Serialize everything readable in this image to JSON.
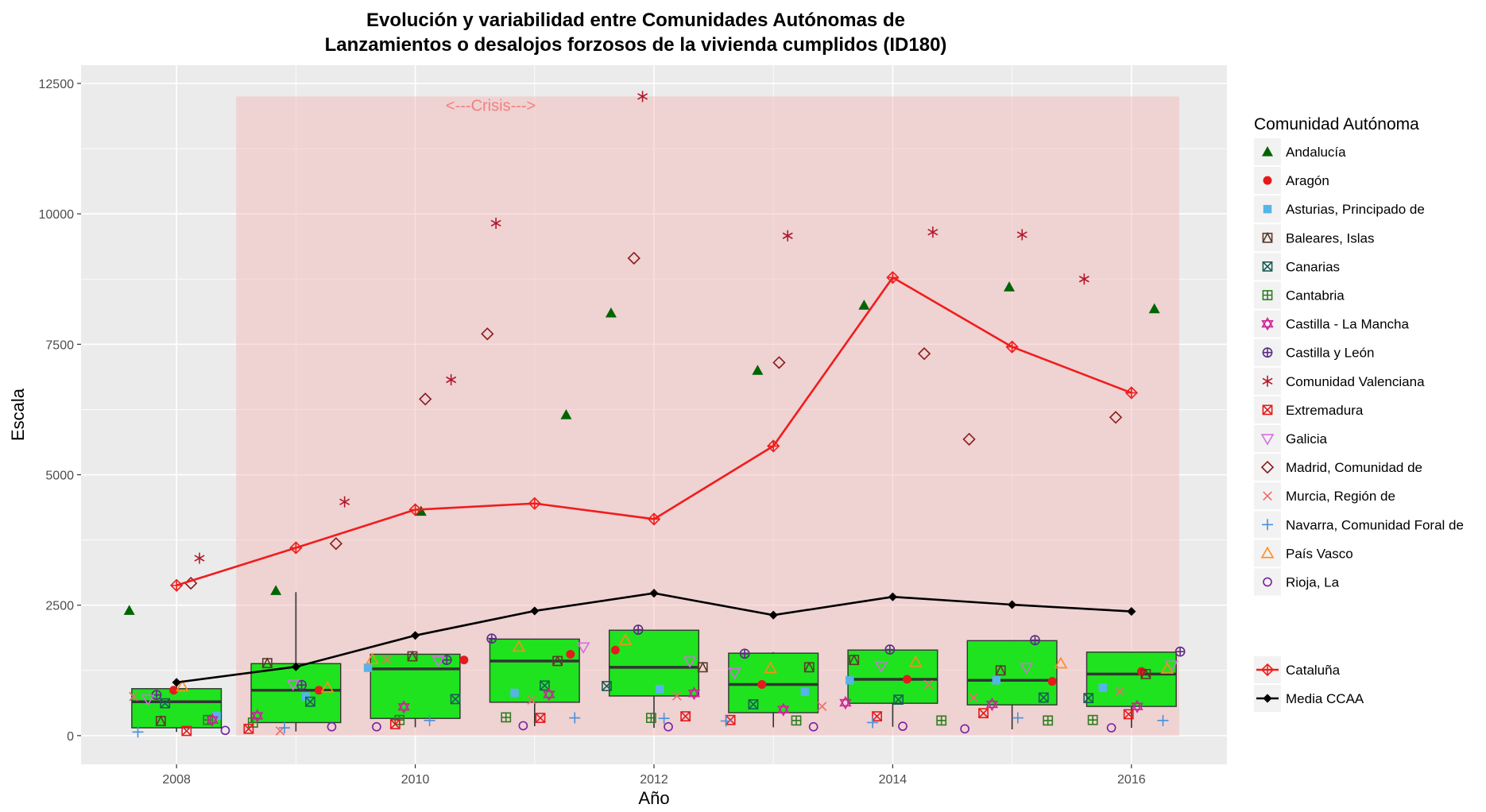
{
  "chart_data": {
    "type": "boxplot",
    "title_line1": "Evolución y variabilidad entre Comunidades Autónomas de",
    "title_line2": "Lanzamientos o desalojos forzosos de la vivienda cumplidos (ID180)",
    "xlabel": "Año",
    "ylabel": "Escala",
    "xlim": [
      2007.2,
      2016.8
    ],
    "ylim": [
      -550,
      12850
    ],
    "x_ticks": [
      2008,
      2010,
      2012,
      2014,
      2016
    ],
    "y_ticks": [
      0,
      2500,
      5000,
      7500,
      10000,
      12500
    ],
    "x_tick_labels": [
      "2008",
      "2010",
      "2012",
      "2014",
      "2016"
    ],
    "y_tick_labels": [
      "0",
      "2500",
      "5000",
      "7500",
      "10000",
      "12500"
    ],
    "grid": true,
    "legend_position": "right",
    "crisis_band": {
      "label": "<---Crisis--->",
      "x_start": 2008.5,
      "x_end": 2016.4,
      "y_top": 12250,
      "color": "#f4b4b4"
    },
    "boxes": [
      {
        "x": 2008,
        "q1": 150,
        "median": 650,
        "q3": 900,
        "lower": 70,
        "upper": 940
      },
      {
        "x": 2009,
        "q1": 250,
        "median": 870,
        "q3": 1380,
        "lower": 80,
        "upper": 2750
      },
      {
        "x": 2010,
        "q1": 330,
        "median": 1280,
        "q3": 1560,
        "lower": 160,
        "upper": 1580
      },
      {
        "x": 2011,
        "q1": 640,
        "median": 1430,
        "q3": 1850,
        "lower": 180,
        "upper": 1860
      },
      {
        "x": 2012,
        "q1": 760,
        "median": 1310,
        "q3": 2020,
        "lower": 150,
        "upper": 2030
      },
      {
        "x": 2013,
        "q1": 440,
        "median": 980,
        "q3": 1580,
        "lower": 160,
        "upper": 1600
      },
      {
        "x": 2014,
        "q1": 620,
        "median": 1080,
        "q3": 1640,
        "lower": 170,
        "upper": 1650
      },
      {
        "x": 2015,
        "q1": 590,
        "median": 1060,
        "q3": 1820,
        "lower": 120,
        "upper": 1830
      },
      {
        "x": 2016,
        "q1": 560,
        "median": 1180,
        "q3": 1600,
        "lower": 150,
        "upper": 1610
      }
    ],
    "box_color": "#1fe31f",
    "years": [
      2008,
      2009,
      2010,
      2011,
      2012,
      2013,
      2014,
      2015,
      2016
    ],
    "legend_title": "Comunidad Autónoma",
    "series": [
      {
        "name": "Andalucía",
        "shape": "triangle-filled",
        "color": "#006400",
        "values": [
          2400,
          2780,
          4300,
          6150,
          8100,
          7000,
          8250,
          8600,
          8180
        ]
      },
      {
        "name": "Aragón",
        "shape": "circle-filled",
        "color": "#e41a1c",
        "values": [
          870,
          870,
          1450,
          1560,
          1640,
          980,
          1080,
          1040,
          1230
        ]
      },
      {
        "name": "Asturias, Principado de",
        "shape": "square-filled",
        "color": "#56b4e9",
        "values": [
          380,
          750,
          1300,
          820,
          890,
          840,
          1060,
          1060,
          920
        ]
      },
      {
        "name": "Baleares, Islas",
        "shape": "square-triangle",
        "color": "#5b3a29",
        "values": [
          280,
          1390,
          1520,
          1430,
          1310,
          1310,
          1450,
          1250,
          1180
        ]
      },
      {
        "name": "Canarias",
        "shape": "square-x",
        "color": "#1a5e55",
        "values": [
          620,
          650,
          700,
          960,
          950,
          600,
          690,
          730,
          720
        ]
      },
      {
        "name": "Cantabria",
        "shape": "square-plus",
        "color": "#2e7d1f",
        "values": [
          300,
          250,
          300,
          350,
          340,
          290,
          290,
          290,
          300
        ]
      },
      {
        "name": "Castilla - La Mancha",
        "shape": "star-of-david",
        "color": "#cc2299",
        "values": [
          300,
          380,
          550,
          790,
          810,
          500,
          630,
          600,
          560
        ]
      },
      {
        "name": "Castilla y León",
        "shape": "circle-plus",
        "color": "#5b2c83",
        "values": [
          780,
          970,
          1450,
          1860,
          2030,
          1570,
          1650,
          1830,
          1610
        ]
      },
      {
        "name": "Comunidad Valenciana",
        "shape": "asterisk",
        "color": "#b2182b",
        "values": [
          3400,
          4480,
          6820,
          9820,
          12250,
          9580,
          9650,
          9600,
          8750
        ]
      },
      {
        "name": "Extremadura",
        "shape": "square-cross",
        "color": "#e31a1c",
        "values": [
          90,
          130,
          220,
          340,
          370,
          300,
          370,
          430,
          410
        ]
      },
      {
        "name": "Galicia",
        "shape": "triangle-down",
        "color": "#d36fe0",
        "values": [
          700,
          990,
          1440,
          1700,
          1430,
          1210,
          1340,
          1310,
          1350
        ]
      },
      {
        "name": "Madrid, Comunidad de",
        "shape": "diamond",
        "color": "#8b1a1a",
        "values": [
          2920,
          3680,
          6450,
          7700,
          9150,
          7150,
          7320,
          5680,
          6100
        ]
      },
      {
        "name": "Murcia, Región de",
        "shape": "x",
        "color": "#f06a6a",
        "values": [
          750,
          90,
          1460,
          680,
          760,
          560,
          980,
          730,
          850
        ]
      },
      {
        "name": "Navarra, Comunidad Foral de",
        "shape": "plus",
        "color": "#4a90d9",
        "values": [
          70,
          150,
          290,
          340,
          330,
          280,
          250,
          340,
          290
        ]
      },
      {
        "name": "País Vasco",
        "shape": "triangle-open",
        "color": "#ff8c1a",
        "values": [
          940,
          920,
          1460,
          1700,
          1830,
          1290,
          1410,
          1380,
          1280
        ]
      },
      {
        "name": "Rioja, La",
        "shape": "circle-open",
        "color": "#7a1fa2",
        "values": [
          100,
          170,
          170,
          190,
          170,
          170,
          180,
          130,
          150
        ]
      }
    ],
    "line_series": [
      {
        "name": "Cataluña",
        "shape": "diamond-plus",
        "color": "#f01d1d",
        "values": [
          2880,
          3600,
          4330,
          4450,
          4150,
          5550,
          8780,
          7450,
          6570
        ]
      },
      {
        "name": "Media CCAA",
        "shape": "diamond-filled",
        "color": "#000000",
        "values": [
          1020,
          1320,
          1920,
          2390,
          2730,
          2310,
          2660,
          2510,
          2380
        ]
      }
    ]
  }
}
